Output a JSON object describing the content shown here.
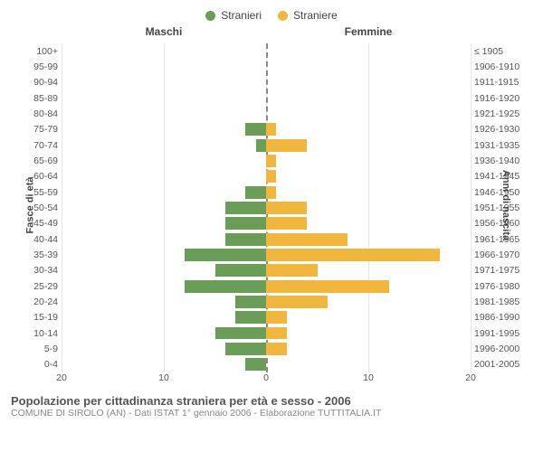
{
  "legend": {
    "male": {
      "label": "Stranieri",
      "color": "#6a9e58"
    },
    "female": {
      "label": "Straniere",
      "color": "#f1b63e"
    }
  },
  "headers": {
    "left": "Maschi",
    "right": "Femmine"
  },
  "axis_labels": {
    "left": "Fasce di età",
    "right": "Anni di nascita"
  },
  "caption": {
    "title": "Popolazione per cittadinanza straniera per età e sesso - 2006",
    "sub": "COMUNE DI SIROLO (AN) - Dati ISTAT 1° gennaio 2006 - Elaborazione TUTTITALIA.IT"
  },
  "chart": {
    "type": "population-pyramid",
    "xlim": 20,
    "xticks": [
      20,
      10,
      0,
      10,
      20
    ],
    "background_color": "#ffffff",
    "grid_color": "#e6e6e6",
    "centerline_color": "#888888",
    "label_fontsize": 11,
    "tick_fontsize": 10.5,
    "bar_colors": {
      "male": "#6a9e58",
      "female": "#f1b63e"
    },
    "rows": [
      {
        "age": "100+",
        "birth": "≤ 1905",
        "m": 0,
        "f": 0
      },
      {
        "age": "95-99",
        "birth": "1906-1910",
        "m": 0,
        "f": 0
      },
      {
        "age": "90-94",
        "birth": "1911-1915",
        "m": 0,
        "f": 0
      },
      {
        "age": "85-89",
        "birth": "1916-1920",
        "m": 0,
        "f": 0
      },
      {
        "age": "80-84",
        "birth": "1921-1925",
        "m": 0,
        "f": 0
      },
      {
        "age": "75-79",
        "birth": "1926-1930",
        "m": 2,
        "f": 1
      },
      {
        "age": "70-74",
        "birth": "1931-1935",
        "m": 1,
        "f": 4
      },
      {
        "age": "65-69",
        "birth": "1936-1940",
        "m": 0,
        "f": 1
      },
      {
        "age": "60-64",
        "birth": "1941-1945",
        "m": 0,
        "f": 1
      },
      {
        "age": "55-59",
        "birth": "1946-1950",
        "m": 2,
        "f": 1
      },
      {
        "age": "50-54",
        "birth": "1951-1955",
        "m": 4,
        "f": 4
      },
      {
        "age": "45-49",
        "birth": "1956-1960",
        "m": 4,
        "f": 4
      },
      {
        "age": "40-44",
        "birth": "1961-1965",
        "m": 4,
        "f": 8
      },
      {
        "age": "35-39",
        "birth": "1966-1970",
        "m": 8,
        "f": 17
      },
      {
        "age": "30-34",
        "birth": "1971-1975",
        "m": 5,
        "f": 5
      },
      {
        "age": "25-29",
        "birth": "1976-1980",
        "m": 8,
        "f": 12
      },
      {
        "age": "20-24",
        "birth": "1981-1985",
        "m": 3,
        "f": 6
      },
      {
        "age": "15-19",
        "birth": "1986-1990",
        "m": 3,
        "f": 2
      },
      {
        "age": "10-14",
        "birth": "1991-1995",
        "m": 5,
        "f": 2
      },
      {
        "age": "5-9",
        "birth": "1996-2000",
        "m": 4,
        "f": 2
      },
      {
        "age": "0-4",
        "birth": "2001-2005",
        "m": 2,
        "f": 0
      }
    ]
  }
}
